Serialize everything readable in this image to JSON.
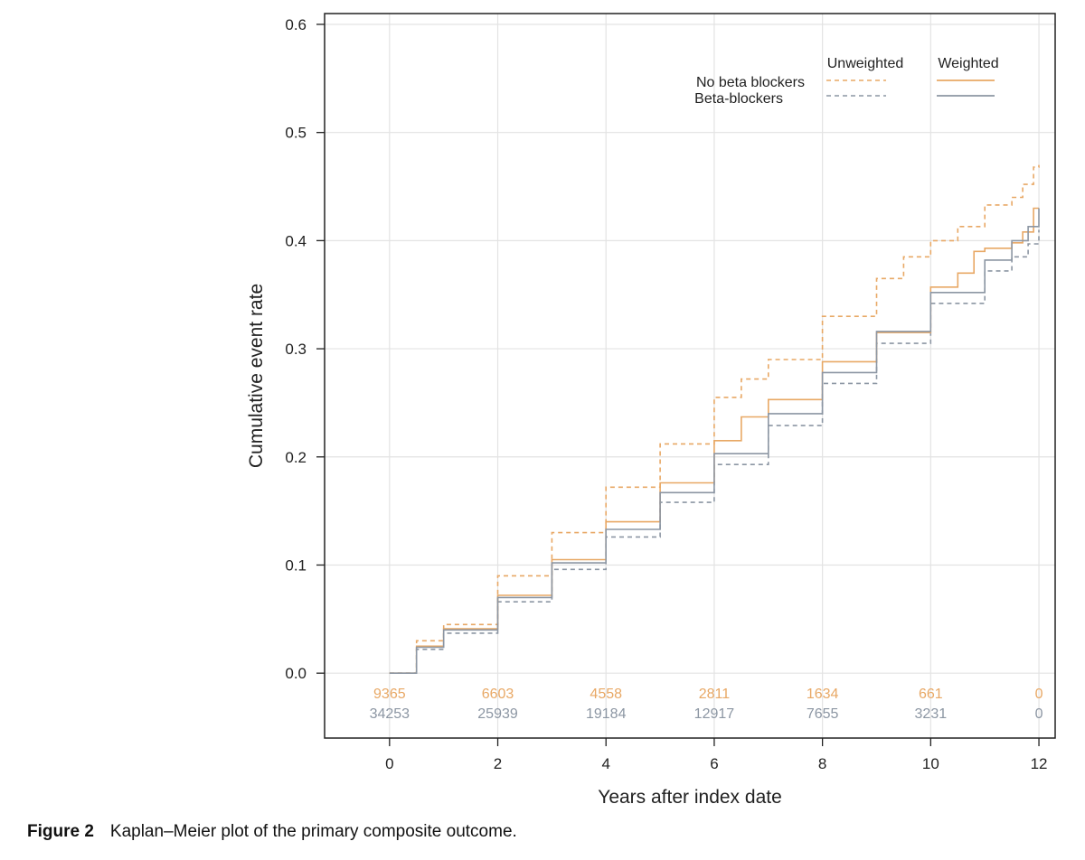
{
  "chart_data": {
    "type": "line",
    "xlabel": "Years after index date",
    "ylabel": "Cumulative event rate",
    "xlim": [
      -1.2,
      12.3
    ],
    "ylim": [
      -0.06,
      0.61
    ],
    "xticks": [
      0,
      2,
      4,
      6,
      8,
      10,
      12
    ],
    "yticks": [
      0.0,
      0.1,
      0.2,
      0.3,
      0.4,
      0.5,
      0.6
    ],
    "xtick_labels": [
      "0",
      "2",
      "4",
      "6",
      "8",
      "10",
      "12"
    ],
    "ytick_labels": [
      "0.0",
      "0.1",
      "0.2",
      "0.3",
      "0.4",
      "0.5",
      "0.6"
    ],
    "grid": true,
    "legend": {
      "placement": "top-right",
      "col_headers": [
        "Unweighted",
        "Weighted"
      ],
      "rows": [
        "No beta blockers",
        "Beta-blockers"
      ]
    },
    "colors": {
      "no_beta_blockers": "#e8a865",
      "beta_blockers": "#8c96a3"
    },
    "series": [
      {
        "name": "No beta blockers",
        "style": "dashed",
        "color": "#e8a865",
        "x": [
          0,
          0.5,
          1,
          2,
          3,
          4,
          5,
          6,
          6.5,
          7,
          8,
          9,
          9.5,
          10,
          10.5,
          11,
          11.5,
          11.7,
          11.9,
          12.0
        ],
        "y": [
          0,
          0.03,
          0.045,
          0.09,
          0.13,
          0.172,
          0.212,
          0.255,
          0.272,
          0.29,
          0.33,
          0.365,
          0.385,
          0.4,
          0.413,
          0.433,
          0.44,
          0.452,
          0.468,
          0.47
        ]
      },
      {
        "name": "Beta-blockers",
        "style": "dashed",
        "color": "#8c96a3",
        "x": [
          0,
          0.5,
          1,
          2,
          3,
          4,
          5,
          6,
          7,
          8,
          9,
          10,
          11,
          11.5,
          11.8,
          12.0
        ],
        "y": [
          0,
          0.022,
          0.037,
          0.066,
          0.096,
          0.126,
          0.158,
          0.193,
          0.229,
          0.268,
          0.305,
          0.342,
          0.372,
          0.385,
          0.397,
          0.41
        ]
      },
      {
        "name": "No beta blockers",
        "style": "solid",
        "color": "#e8a865",
        "x": [
          0,
          0.5,
          1,
          2,
          3,
          4,
          5,
          6,
          6.5,
          7,
          8,
          9,
          10,
          10.5,
          10.8,
          11,
          11.5,
          11.7,
          11.9,
          12.0
        ],
        "y": [
          0,
          0.025,
          0.041,
          0.072,
          0.105,
          0.14,
          0.176,
          0.215,
          0.237,
          0.253,
          0.288,
          0.315,
          0.357,
          0.37,
          0.39,
          0.393,
          0.398,
          0.408,
          0.43,
          0.43
        ]
      },
      {
        "name": "Beta-blockers",
        "style": "solid",
        "color": "#8c96a3",
        "x": [
          0,
          0.5,
          1,
          2,
          3,
          4,
          5,
          6,
          7,
          8,
          9,
          10,
          11,
          11.5,
          11.8,
          12.0
        ],
        "y": [
          0,
          0.024,
          0.04,
          0.07,
          0.102,
          0.133,
          0.167,
          0.203,
          0.24,
          0.278,
          0.316,
          0.352,
          0.382,
          0.4,
          0.413,
          0.43
        ]
      }
    ],
    "at_risk": [
      {
        "group": "No beta blockers",
        "color": "#e8a865",
        "x": [
          0,
          2,
          4,
          6,
          8,
          10,
          12
        ],
        "values": [
          "9365",
          "6603",
          "4558",
          "2811",
          "1634",
          "661",
          "0"
        ]
      },
      {
        "group": "Beta-blockers",
        "color": "#8c96a3",
        "x": [
          0,
          2,
          4,
          6,
          8,
          10,
          12
        ],
        "values": [
          "34253",
          "25939",
          "19184",
          "12917",
          "7655",
          "3231",
          "0"
        ]
      }
    ]
  },
  "caption": {
    "label": "Figure 2",
    "text": "Kaplan–Meier plot of the primary composite outcome."
  }
}
